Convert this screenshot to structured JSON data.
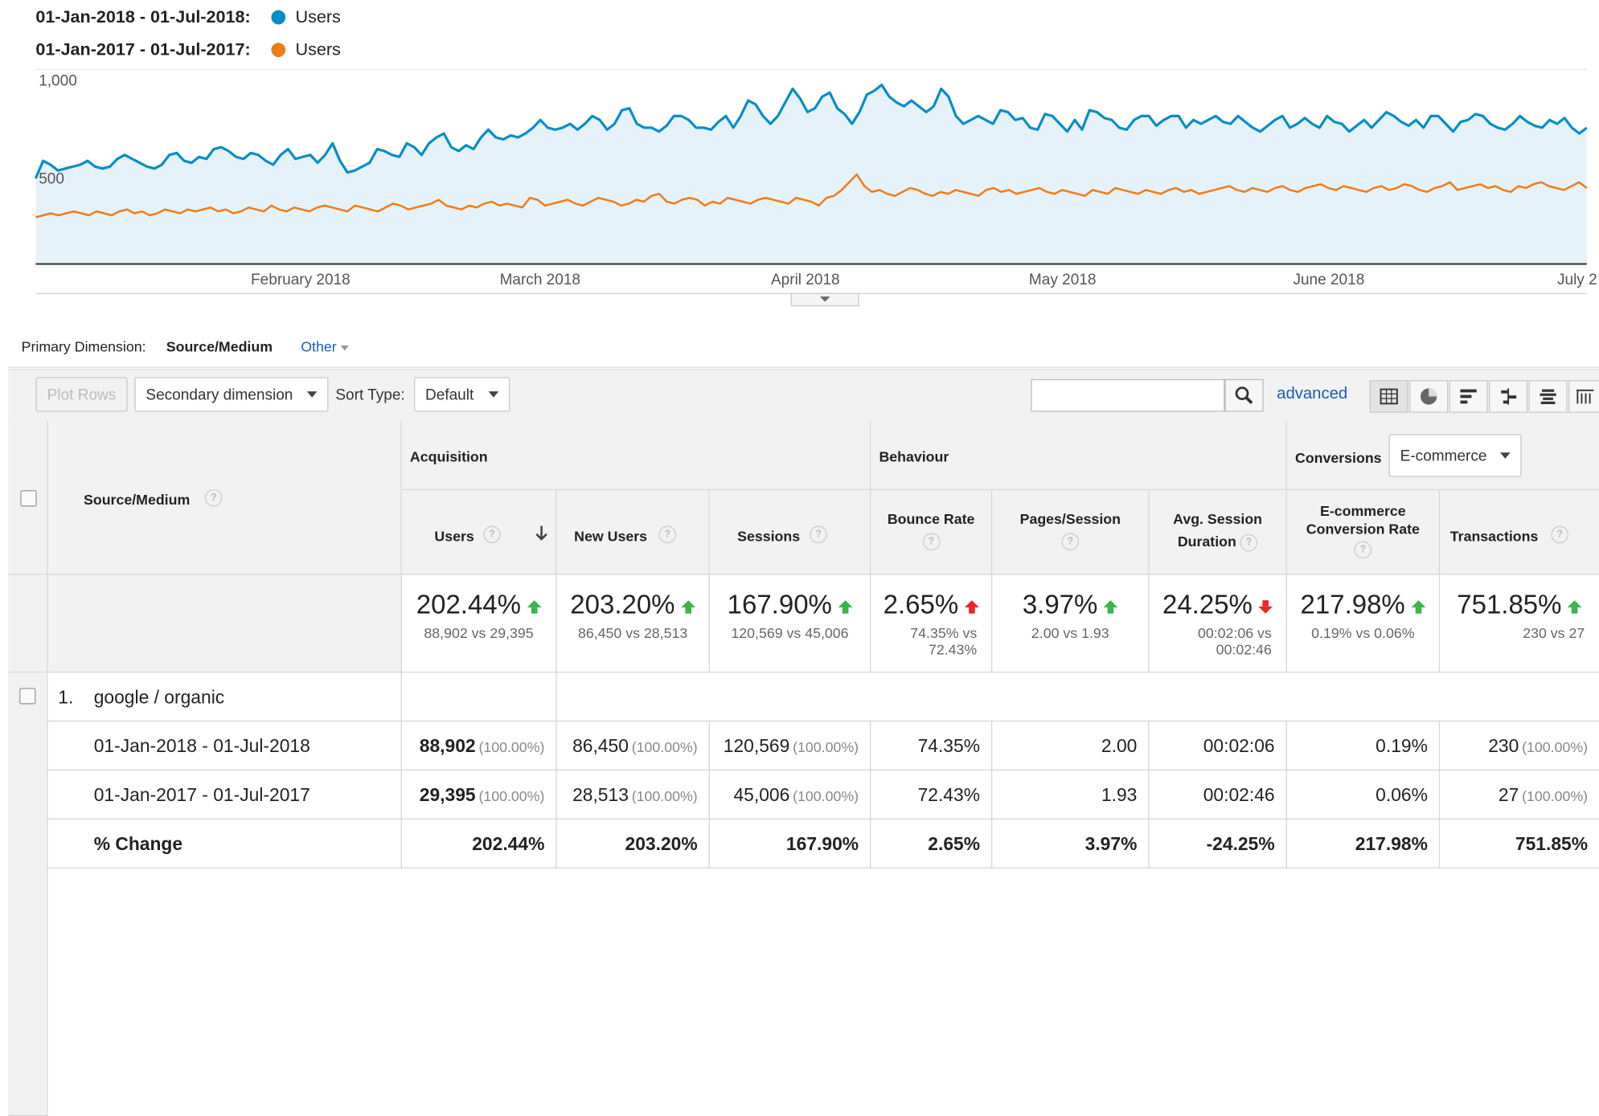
{
  "legend": [
    {
      "range": "01-Jan-2018 - 01-Jul-2018:",
      "metric": "Users",
      "color": "#058dc7"
    },
    {
      "range": "01-Jan-2017 - 01-Jul-2017:",
      "metric": "Users",
      "color": "#ed7e17"
    }
  ],
  "chart_data": {
    "type": "line",
    "ylim": [
      0,
      1000
    ],
    "y_ticks": [
      "500",
      "1,000"
    ],
    "x_ticks": [
      "February 2018",
      "March 2018",
      "April 2018",
      "May 2018",
      "June 2018",
      "July 2"
    ],
    "series": [
      {
        "name": "01-Jan-2018 - 01-Jul-2018: Users",
        "color": "#058dc7",
        "values": [
          440,
          530,
          510,
          480,
          490,
          500,
          510,
          530,
          500,
          490,
          500,
          540,
          560,
          540,
          520,
          500,
          490,
          510,
          560,
          570,
          530,
          520,
          550,
          540,
          590,
          600,
          580,
          550,
          540,
          570,
          560,
          530,
          510,
          560,
          590,
          540,
          550,
          560,
          520,
          560,
          620,
          530,
          470,
          480,
          500,
          520,
          590,
          580,
          560,
          550,
          620,
          600,
          560,
          620,
          650,
          670,
          600,
          580,
          610,
          590,
          650,
          690,
          650,
          640,
          660,
          650,
          670,
          700,
          740,
          700,
          690,
          700,
          720,
          690,
          720,
          760,
          740,
          690,
          720,
          790,
          800,
          720,
          700,
          700,
          680,
          710,
          760,
          760,
          740,
          700,
          700,
          690,
          730,
          760,
          700,
          760,
          840,
          820,
          760,
          720,
          760,
          830,
          900,
          850,
          780,
          800,
          860,
          880,
          800,
          770,
          720,
          780,
          870,
          890,
          920,
          860,
          830,
          810,
          840,
          810,
          780,
          810,
          900,
          860,
          760,
          720,
          740,
          760,
          740,
          720,
          790,
          780,
          740,
          750,
          700,
          690,
          770,
          760,
          720,
          680,
          740,
          690,
          790,
          780,
          750,
          740,
          700,
          690,
          740,
          760,
          760,
          710,
          740,
          760,
          760,
          700,
          740,
          720,
          740,
          760,
          730,
          720,
          760,
          730,
          700,
          680,
          710,
          740,
          760,
          700,
          720,
          750,
          720,
          700,
          760,
          730,
          720,
          680,
          710,
          740,
          700,
          740,
          780,
          760,
          730,
          710,
          740,
          700,
          760,
          760,
          720,
          680,
          730,
          740,
          770,
          760,
          720,
          700,
          690,
          720,
          760,
          730,
          710,
          700,
          740,
          720,
          750,
          700,
          670,
          700
        ]
      },
      {
        "name": "01-Jan-2017 - 01-Jul-2017: Users",
        "color": "#ed7e17",
        "values": [
          240,
          250,
          260,
          250,
          260,
          270,
          260,
          250,
          270,
          260,
          250,
          270,
          280,
          260,
          270,
          250,
          260,
          280,
          270,
          260,
          280,
          270,
          280,
          290,
          270,
          280,
          260,
          270,
          290,
          280,
          270,
          300,
          280,
          270,
          290,
          280,
          270,
          290,
          300,
          290,
          280,
          270,
          300,
          290,
          280,
          270,
          290,
          310,
          300,
          280,
          290,
          300,
          310,
          330,
          300,
          290,
          280,
          300,
          290,
          310,
          320,
          300,
          310,
          300,
          290,
          340,
          330,
          300,
          310,
          320,
          330,
          310,
          300,
          320,
          340,
          330,
          320,
          300,
          310,
          330,
          320,
          350,
          360,
          320,
          310,
          330,
          340,
          330,
          300,
          320,
          310,
          340,
          330,
          320,
          310,
          330,
          340,
          330,
          320,
          310,
          340,
          330,
          320,
          300,
          340,
          350,
          380,
          420,
          460,
          400,
          370,
          380,
          360,
          350,
          370,
          390,
          380,
          360,
          350,
          370,
          360,
          380,
          370,
          360,
          350,
          380,
          390,
          370,
          380,
          360,
          370,
          380,
          390,
          370,
          360,
          380,
          370,
          360,
          350,
          380,
          370,
          360,
          390,
          380,
          370,
          360,
          380,
          370,
          360,
          380,
          390,
          370,
          380,
          360,
          370,
          380,
          390,
          400,
          380,
          370,
          390,
          380,
          370,
          390,
          400,
          380,
          370,
          390,
          400,
          410,
          390,
          380,
          400,
          390,
          380,
          370,
          390,
          400,
          380,
          390,
          410,
          400,
          380,
          370,
          390,
          400,
          420,
          380,
          390,
          400,
          410,
          390,
          400,
          380,
          370,
          400,
          390,
          410,
          420,
          400,
          390,
          380,
          400,
          420,
          390
        ]
      }
    ]
  },
  "primary_dimension": {
    "label": "Primary Dimension:",
    "value": "Source/Medium",
    "other": "Other"
  },
  "toolbar": {
    "plot_rows": "Plot Rows",
    "secondary_dimension": "Secondary dimension",
    "sort_type_label": "Sort Type:",
    "sort_type_value": "Default",
    "search_value": "",
    "advanced": "advanced"
  },
  "table": {
    "dimension_header": "Source/Medium",
    "groups": {
      "acquisition": "Acquisition",
      "behaviour": "Behaviour",
      "conversions": "Conversions",
      "conversion_select": "E-commerce"
    },
    "columns": {
      "users": "Users",
      "new_users": "New Users",
      "sessions": "Sessions",
      "bounce_rate": "Bounce Rate",
      "pages_session": "Pages/Session",
      "avg_session_1": "Avg. Session",
      "avg_session_2": "Duration",
      "ecom_rate_1": "E-commerce",
      "ecom_rate_2": "Conversion Rate",
      "transactions": "Transactions"
    },
    "summary": {
      "users": {
        "pct": "202.44%",
        "cmp": "88,902 vs 29,395"
      },
      "new_users": {
        "pct": "203.20%",
        "cmp": "86,450 vs 28,513"
      },
      "sessions": {
        "pct": "167.90%",
        "cmp": "120,569 vs 45,006"
      },
      "bounce_rate": {
        "pct": "2.65%",
        "cmp1": "74.35% vs",
        "cmp2": "72.43%"
      },
      "pages_session": {
        "pct": "3.97%",
        "cmp": "2.00 vs 1.93"
      },
      "avg_session": {
        "pct": "24.25%",
        "cmp1": "00:02:06 vs",
        "cmp2": "00:02:46"
      },
      "ecom_rate": {
        "pct": "217.98%",
        "cmp": "0.19% vs 0.06%"
      },
      "transactions": {
        "pct": "751.85%",
        "cmp": "230 vs 27"
      }
    },
    "row": {
      "index": "1.",
      "name": "google / organic",
      "periods": [
        {
          "label": "01-Jan-2018 - 01-Jul-2018",
          "users": "88,902",
          "users_pct": "(100.00%)",
          "new_users": "86,450",
          "new_users_pct": "(100.00%)",
          "sessions": "120,569",
          "sessions_pct": "(100.00%)",
          "bounce_rate": "74.35%",
          "pages_session": "2.00",
          "avg_session": "00:02:06",
          "ecom_rate": "0.19%",
          "transactions": "230",
          "transactions_pct": "(100.00%)"
        },
        {
          "label": "01-Jan-2017 - 01-Jul-2017",
          "users": "29,395",
          "users_pct": "(100.00%)",
          "new_users": "28,513",
          "new_users_pct": "(100.00%)",
          "sessions": "45,006",
          "sessions_pct": "(100.00%)",
          "bounce_rate": "72.43%",
          "pages_session": "1.93",
          "avg_session": "00:02:46",
          "ecom_rate": "0.06%",
          "transactions": "27",
          "transactions_pct": "(100.00%)"
        }
      ],
      "change": {
        "label": "% Change",
        "users": "202.44%",
        "new_users": "203.20%",
        "sessions": "167.90%",
        "bounce_rate": "2.65%",
        "pages_session": "3.97%",
        "avg_session": "-24.25%",
        "ecom_rate": "217.98%",
        "transactions": "751.85%"
      }
    }
  }
}
